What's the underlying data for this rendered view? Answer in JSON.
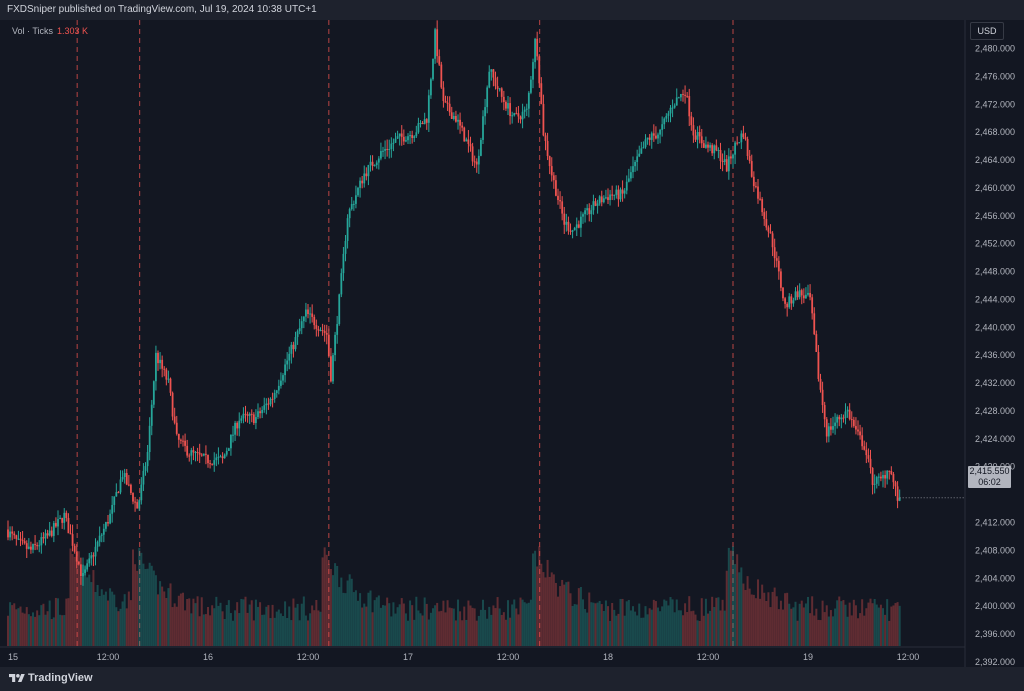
{
  "header": {
    "published_text": "FXDSniper published on TradingView.com, Jul 19, 2024 10:38 UTC+1"
  },
  "footer": {
    "brand": "TradingView",
    "logo_icon": "tradingview-logo-icon"
  },
  "indicator": {
    "label": "Vol · Ticks",
    "value": "1.303 K"
  },
  "currency": "USD",
  "last_price": {
    "price": "2,415.550",
    "countdown": "06:02",
    "value": 2415.55
  },
  "colors": {
    "up": "#26a69a",
    "down": "#ef5350",
    "background": "#131722",
    "session": "#ef5350"
  },
  "chart_data": {
    "type": "candlestick",
    "symbol_text": "",
    "y_axis": {
      "range": [
        2389,
        2488
      ],
      "ticks": [
        2392,
        2396,
        2400,
        2404,
        2408,
        2412,
        2420,
        2424,
        2428,
        2432,
        2436,
        2440,
        2444,
        2448,
        2452,
        2456,
        2460,
        2464,
        2468,
        2472,
        2476,
        2480
      ]
    },
    "y_tick_labels": [
      "2,392.000",
      "2,396.000",
      "2,400.000",
      "2,404.000",
      "2,408.000",
      "2,412.000",
      "2,420.000",
      "2,424.000",
      "2,428.000",
      "2,432.000",
      "2,436.000",
      "2,440.000",
      "2,444.000",
      "2,448.000",
      "2,452.000",
      "2,456.000",
      "2,460.000",
      "2,464.000",
      "2,468.000",
      "2,472.000",
      "2,476.000",
      "2,480.000"
    ],
    "x_axis": {
      "unit": "hours since Jul 15 00:00",
      "range": [
        0,
        114
      ]
    },
    "x_ticks": [
      {
        "t": 0,
        "label": "15"
      },
      {
        "t": 12,
        "label": "12:00"
      },
      {
        "t": 24,
        "label": "16"
      },
      {
        "t": 36,
        "label": "12:00"
      },
      {
        "t": 48,
        "label": "17"
      },
      {
        "t": 60,
        "label": "12:00"
      },
      {
        "t": 72,
        "label": "18"
      },
      {
        "t": 84,
        "label": "12:00"
      },
      {
        "t": 96,
        "label": "19"
      },
      {
        "t": 108,
        "label": "12:00"
      }
    ],
    "session_lines": [
      8.3,
      15.8,
      38.5,
      63.8,
      87
    ],
    "price_path": [
      [
        0,
        2411
      ],
      [
        1.5,
        2409
      ],
      [
        3,
        2408
      ],
      [
        5,
        2410
      ],
      [
        7,
        2413
      ],
      [
        8.3,
        2408
      ],
      [
        9.2,
        2404
      ],
      [
        11,
        2409
      ],
      [
        12.5,
        2413
      ],
      [
        14,
        2419
      ],
      [
        15.8,
        2414
      ],
      [
        17,
        2422
      ],
      [
        18,
        2436
      ],
      [
        19.5,
        2432
      ],
      [
        20.5,
        2424
      ],
      [
        22,
        2422
      ],
      [
        24,
        2421
      ],
      [
        26,
        2421
      ],
      [
        28,
        2427
      ],
      [
        30,
        2427
      ],
      [
        32,
        2430
      ],
      [
        34,
        2436
      ],
      [
        36,
        2442
      ],
      [
        38.5,
        2439
      ],
      [
        39,
        2433
      ],
      [
        40,
        2444
      ],
      [
        41,
        2456
      ],
      [
        43,
        2462
      ],
      [
        45,
        2465
      ],
      [
        47,
        2467
      ],
      [
        49,
        2468
      ],
      [
        50.5,
        2470
      ],
      [
        51.5,
        2482
      ],
      [
        52.5,
        2472
      ],
      [
        54,
        2470
      ],
      [
        55.5,
        2466
      ],
      [
        56.5,
        2463
      ],
      [
        58,
        2477
      ],
      [
        59.5,
        2473
      ],
      [
        61,
        2470
      ],
      [
        62.5,
        2471
      ],
      [
        63.6,
        2482
      ],
      [
        64.5,
        2468
      ],
      [
        65.5,
        2462
      ],
      [
        67,
        2455
      ],
      [
        68,
        2454
      ],
      [
        69.5,
        2456
      ],
      [
        71,
        2458
      ],
      [
        72.5,
        2459
      ],
      [
        74,
        2459
      ],
      [
        75,
        2462
      ],
      [
        77,
        2467
      ],
      [
        78.5,
        2468
      ],
      [
        80,
        2472
      ],
      [
        81.5,
        2474
      ],
      [
        82.5,
        2468
      ],
      [
        84,
        2466
      ],
      [
        85.5,
        2465
      ],
      [
        86.5,
        2463
      ],
      [
        87.5,
        2466
      ],
      [
        88.5,
        2468
      ],
      [
        89.5,
        2462
      ],
      [
        91,
        2456
      ],
      [
        92,
        2452
      ],
      [
        93.5,
        2443
      ],
      [
        95,
        2445
      ],
      [
        96.5,
        2444
      ],
      [
        97.5,
        2433
      ],
      [
        98.5,
        2425
      ],
      [
        100,
        2427
      ],
      [
        101,
        2428
      ],
      [
        102,
        2425
      ],
      [
        103,
        2423
      ],
      [
        104,
        2418
      ],
      [
        105,
        2418
      ],
      [
        106,
        2420
      ],
      [
        107,
        2415.5
      ]
    ],
    "volume_note": "Volume histogram in the lower pane with peaks at the session boundaries (~1.3 K ticks)."
  }
}
